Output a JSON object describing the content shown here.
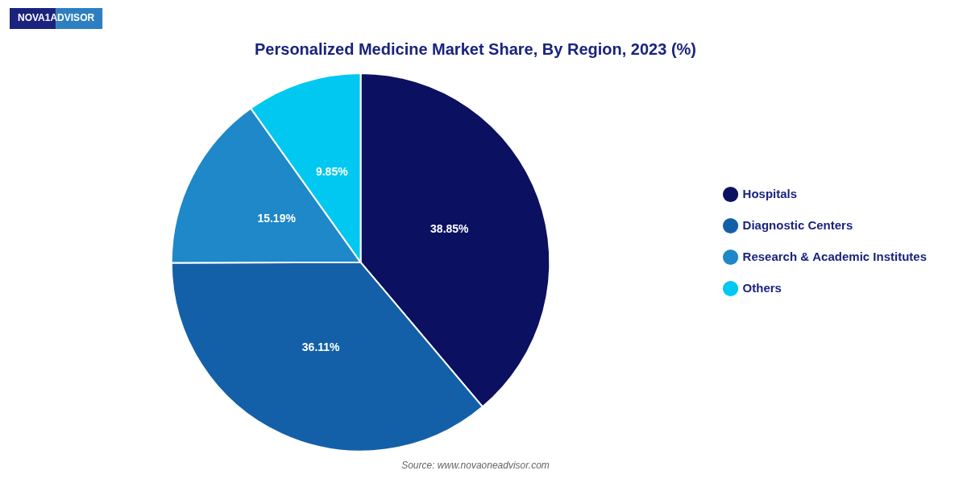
{
  "chart_data": {
    "type": "pie",
    "title": "Personalized Medicine Market Share, By Region, 2023 (%)",
    "categories": [
      "Hospitals",
      "Diagnostic Centers",
      "Research & Academic Institutes",
      "Others"
    ],
    "values": [
      38.85,
      36.11,
      15.19,
      9.85
    ],
    "value_labels": [
      "38.85%",
      "36.11%",
      "15.19%",
      "9.85%"
    ],
    "colors": [
      "#0b1060",
      "#1460a8",
      "#1e88c8",
      "#00c8f0"
    ],
    "data_labels": true,
    "legend": "right",
    "annotations": [
      "NOVA1ADVISOR",
      "Source: www.novaoneadvisor.com"
    ]
  }
}
